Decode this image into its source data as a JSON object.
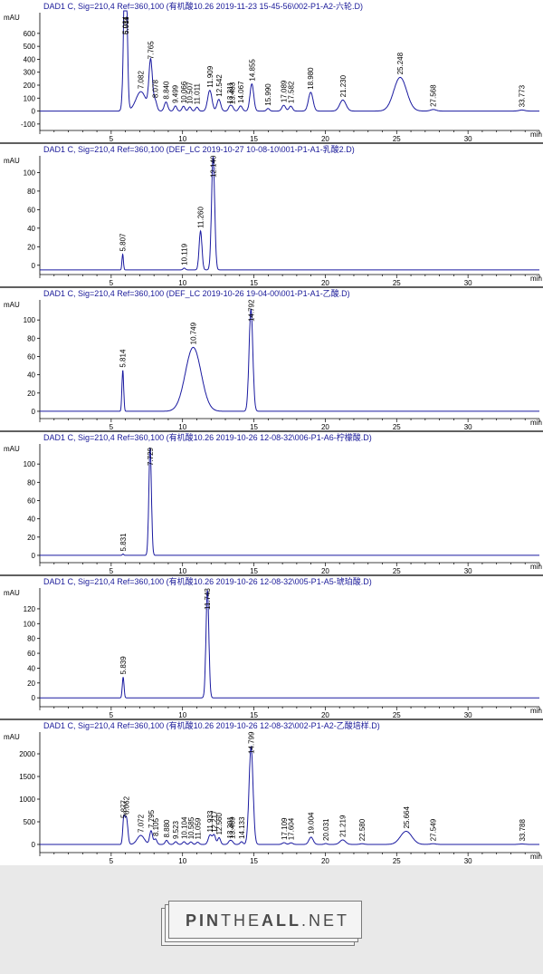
{
  "chart_data": [
    {
      "type": "line",
      "title": "DAD1 C, Sig=210,4 Ref=360,100 (有机酸10.26 2019-11-23 15-45-56\\002-P1-A2-六轮.D)",
      "ylabel": "mAU",
      "xlabel": "min",
      "xlim": [
        0,
        35
      ],
      "ylim": [
        -150,
        760
      ],
      "yticks": [
        -100,
        0,
        100,
        200,
        300,
        400,
        500,
        600
      ],
      "xticks": [
        5,
        10,
        15,
        20,
        25,
        30
      ],
      "baseline": 0,
      "peaks": [
        {
          "rt": 5.984,
          "label": "5.984",
          "height": 700,
          "width": 0.12
        },
        {
          "rt": 6.011,
          "label": "6.011",
          "height": 690,
          "width": 0.1
        },
        {
          "rt": 7.082,
          "label": "7.082",
          "height": 150,
          "width": 0.35
        },
        {
          "rt": 7.765,
          "label": "7.765",
          "height": 380,
          "width": 0.12
        },
        {
          "rt": 8.078,
          "label": "8.078",
          "height": 80,
          "width": 0.12
        },
        {
          "rt": 8.84,
          "label": "8.840",
          "height": 70,
          "width": 0.12
        },
        {
          "rt": 9.499,
          "label": "9.499",
          "height": 40,
          "width": 0.1
        },
        {
          "rt": 10.066,
          "label": "10.066",
          "height": 38,
          "width": 0.1
        },
        {
          "rt": 10.507,
          "label": "10.507",
          "height": 32,
          "width": 0.1
        },
        {
          "rt": 11.011,
          "label": "11.011",
          "height": 30,
          "width": 0.1
        },
        {
          "rt": 11.909,
          "label": "11.909",
          "height": 160,
          "width": 0.15
        },
        {
          "rt": 12.542,
          "label": "12.542",
          "height": 90,
          "width": 0.13
        },
        {
          "rt": 13.311,
          "label": "13.311",
          "height": 35,
          "width": 0.1
        },
        {
          "rt": 13.483,
          "label": "13.483",
          "height": 30,
          "width": 0.1
        },
        {
          "rt": 14.067,
          "label": "14.067",
          "height": 40,
          "width": 0.12
        },
        {
          "rt": 14.855,
          "label": "14.855",
          "height": 210,
          "width": 0.13
        },
        {
          "rt": 15.99,
          "label": "15.990",
          "height": 20,
          "width": 0.1
        },
        {
          "rt": 17.089,
          "label": "17.089",
          "height": 45,
          "width": 0.13
        },
        {
          "rt": 17.582,
          "label": "17.582",
          "height": 38,
          "width": 0.12
        },
        {
          "rt": 18.98,
          "label": "18.980",
          "height": 145,
          "width": 0.16
        },
        {
          "rt": 21.23,
          "label": "21.230",
          "height": 85,
          "width": 0.22
        },
        {
          "rt": 25.248,
          "label": "25.248",
          "height": 260,
          "width": 0.45
        },
        {
          "rt": 27.568,
          "label": "27.568",
          "height": 12,
          "width": 0.2
        },
        {
          "rt": 33.773,
          "label": "33.773",
          "height": 8,
          "width": 0.2
        }
      ]
    },
    {
      "type": "line",
      "title": "DAD1 C, Sig=210,4 Ref=360,100 (DEF_LC 2019-10-27 10-08-10\\001-P1-A1-乳酸2.D)",
      "ylabel": "mAU",
      "xlabel": "min",
      "xlim": [
        0,
        35
      ],
      "ylim": [
        -10,
        118
      ],
      "yticks": [
        0,
        20,
        40,
        60,
        80,
        100
      ],
      "xticks": [
        5,
        10,
        15,
        20,
        25,
        30
      ],
      "baseline": -5,
      "peaks": [
        {
          "rt": 5.807,
          "label": "5.807",
          "height": 17,
          "width": 0.05
        },
        {
          "rt": 10.119,
          "label": "10.119",
          "height": 2,
          "width": 0.08
        },
        {
          "rt": 11.26,
          "label": "11.260",
          "height": 42,
          "width": 0.1
        },
        {
          "rt": 12.14,
          "label": "12.140",
          "height": 122,
          "width": 0.11
        }
      ]
    },
    {
      "type": "line",
      "title": "DAD1 C, Sig=210,4 Ref=360,100 (DEF_LC 2019-10-26 19-04-00\\001-P1-A1-乙酸.D)",
      "ylabel": "mAU",
      "xlabel": "min",
      "xlim": [
        0,
        35
      ],
      "ylim": [
        -8,
        122
      ],
      "yticks": [
        0,
        20,
        40,
        60,
        80,
        100
      ],
      "xticks": [
        5,
        10,
        15,
        20,
        25,
        30
      ],
      "baseline": 0,
      "peaks": [
        {
          "rt": 5.814,
          "label": "5.814",
          "height": 45,
          "width": 0.06
        },
        {
          "rt": 10.749,
          "label": "10.749",
          "height": 70,
          "width": 0.55
        },
        {
          "rt": 14.792,
          "label": "14.792",
          "height": 112,
          "width": 0.13
        }
      ]
    },
    {
      "type": "line",
      "title": "DAD1 C, Sig=210,4 Ref=360,100 (有机酸10.26 2019-10-26 12-08-32\\006-P1-A6-柠檬酸.D)",
      "ylabel": "mAU",
      "xlabel": "min",
      "xlim": [
        0,
        35
      ],
      "ylim": [
        -8,
        122
      ],
      "yticks": [
        0,
        20,
        40,
        60,
        80,
        100
      ],
      "xticks": [
        5,
        10,
        15,
        20,
        25,
        30
      ],
      "baseline": 0,
      "peaks": [
        {
          "rt": 5.831,
          "label": "5.831",
          "height": 1.5,
          "width": 0.05
        },
        {
          "rt": 7.729,
          "label": "7.729",
          "height": 118,
          "width": 0.09
        }
      ]
    },
    {
      "type": "line",
      "title": "DAD1 C, Sig=210,4 Ref=360,100 (有机酸10.26 2019-10-26 12-08-32\\005-P1-A5-琥珀酸.D)",
      "ylabel": "mAU",
      "xlabel": "min",
      "xlim": [
        0,
        35
      ],
      "ylim": [
        -12,
        148
      ],
      "yticks": [
        0,
        20,
        40,
        60,
        80,
        100,
        120
      ],
      "xticks": [
        5,
        10,
        15,
        20,
        25,
        30
      ],
      "baseline": 0,
      "peaks": [
        {
          "rt": 5.839,
          "label": "5.839",
          "height": 28,
          "width": 0.06
        },
        {
          "rt": 11.743,
          "label": "11.743",
          "height": 145,
          "width": 0.1
        }
      ]
    },
    {
      "type": "line",
      "title": "DAD1 C, Sig=210,4 Ref=360,100 (有机酸10.26 2019-10-26 12-08-32\\002-P1-A2-乙酸培样.D)",
      "ylabel": "mAU",
      "xlabel": "min",
      "xlim": [
        0,
        35
      ],
      "ylim": [
        -180,
        2480
      ],
      "yticks": [
        0,
        500,
        1000,
        1500,
        2000
      ],
      "xticks": [
        5,
        10,
        15,
        20,
        25,
        30
      ],
      "baseline": 0,
      "peaks": [
        {
          "rt": 5.877,
          "label": "5.877",
          "height": 520,
          "width": 0.07
        },
        {
          "rt": 6.062,
          "label": "6.062",
          "height": 600,
          "width": 0.1
        },
        {
          "rt": 7.072,
          "label": "7.072",
          "height": 200,
          "width": 0.25
        },
        {
          "rt": 7.795,
          "label": "7.795",
          "height": 300,
          "width": 0.1
        },
        {
          "rt": 8.105,
          "label": "8.105",
          "height": 120,
          "width": 0.1
        },
        {
          "rt": 8.88,
          "label": "8.880",
          "height": 90,
          "width": 0.1
        },
        {
          "rt": 9.523,
          "label": "9.523",
          "height": 60,
          "width": 0.1
        },
        {
          "rt": 10.104,
          "label": "10.104",
          "height": 60,
          "width": 0.1
        },
        {
          "rt": 10.585,
          "label": "10.585",
          "height": 55,
          "width": 0.1
        },
        {
          "rt": 11.059,
          "label": "11.059",
          "height": 50,
          "width": 0.1
        },
        {
          "rt": 11.933,
          "label": "11.933",
          "height": 210,
          "width": 0.13
        },
        {
          "rt": 12.217,
          "label": "12.217",
          "height": 200,
          "width": 0.1
        },
        {
          "rt": 12.56,
          "label": "12.560",
          "height": 150,
          "width": 0.1
        },
        {
          "rt": 13.301,
          "label": "13.301",
          "height": 70,
          "width": 0.1
        },
        {
          "rt": 13.469,
          "label": "13.469",
          "height": 60,
          "width": 0.1
        },
        {
          "rt": 14.133,
          "label": "14.133",
          "height": 60,
          "width": 0.1
        },
        {
          "rt": 14.799,
          "label": "14.799",
          "height": 2150,
          "width": 0.14
        },
        {
          "rt": 17.109,
          "label": "17.109",
          "height": 40,
          "width": 0.12
        },
        {
          "rt": 17.604,
          "label": "17.604",
          "height": 35,
          "width": 0.12
        },
        {
          "rt": 19.004,
          "label": "19.004",
          "height": 160,
          "width": 0.15
        },
        {
          "rt": 20.031,
          "label": "20.031",
          "height": 20,
          "width": 0.1
        },
        {
          "rt": 21.219,
          "label": "21.219",
          "height": 100,
          "width": 0.2
        },
        {
          "rt": 22.58,
          "label": "22.580",
          "height": 15,
          "width": 0.15
        },
        {
          "rt": 25.664,
          "label": "25.664",
          "height": 290,
          "width": 0.4
        },
        {
          "rt": 27.549,
          "label": "27.549",
          "height": 15,
          "width": 0.2
        },
        {
          "rt": 33.788,
          "label": "33.788",
          "height": 10,
          "width": 0.2
        }
      ]
    }
  ],
  "colors": {
    "trace": "#1a1aa0",
    "baseline": "#cc33cc",
    "title_text": "#1a1a99",
    "axis": "#000000",
    "footer_bg": "#e9e9e9"
  },
  "footer": {
    "logo_strong": "PIN",
    "logo_light": "THE",
    "logo_strong2": "ALL",
    "logo_tail": ".NET"
  }
}
